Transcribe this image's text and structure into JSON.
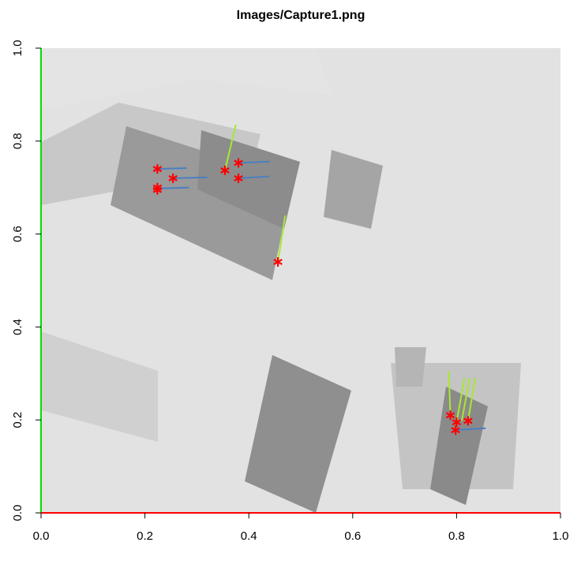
{
  "chart_data": {
    "type": "scatter",
    "title": "Images/Capture1.png",
    "xlim": [
      0,
      1
    ],
    "ylim": [
      0,
      1
    ],
    "xticks": [
      {
        "value": 0,
        "label": "0.0"
      },
      {
        "value": 0.2,
        "label": "0.2"
      },
      {
        "value": 0.4,
        "label": "0.4"
      },
      {
        "value": 0.6,
        "label": "0.6"
      },
      {
        "value": 0.8,
        "label": "0.8"
      },
      {
        "value": 1,
        "label": "1.0"
      }
    ],
    "yticks": [
      {
        "value": 0,
        "label": "0.0"
      },
      {
        "value": 0.2,
        "label": "0.2"
      },
      {
        "value": 0.4,
        "label": "0.4"
      },
      {
        "value": 0.6,
        "label": "0.6"
      },
      {
        "value": 0.8,
        "label": "0.8"
      },
      {
        "value": 1,
        "label": "1.0"
      }
    ],
    "points": {
      "color": "#ff0000",
      "x": [
        0.224,
        0.224,
        0.224,
        0.254,
        0.354,
        0.38,
        0.38,
        0.456,
        0.788,
        0.798,
        0.8,
        0.822
      ],
      "y": [
        0.74,
        0.695,
        0.7,
        0.72,
        0.737,
        0.753,
        0.72,
        0.54,
        0.21,
        0.178,
        0.195,
        0.198
      ]
    },
    "segments": [
      {
        "color": "#4a7fc1",
        "x0": [
          0.224,
          0.224,
          0.254,
          0.38,
          0.38,
          0.798
        ],
        "y0": [
          0.74,
          0.698,
          0.72,
          0.753,
          0.72,
          0.178
        ],
        "x1": [
          0.28,
          0.285,
          0.32,
          0.44,
          0.44,
          0.856
        ],
        "y1": [
          0.742,
          0.7,
          0.722,
          0.756,
          0.724,
          0.182
        ]
      },
      {
        "color": "#a8e830",
        "x0": [
          0.354,
          0.456,
          0.788,
          0.8,
          0.81,
          0.822
        ],
        "y0": [
          0.737,
          0.54,
          0.21,
          0.195,
          0.198,
          0.198
        ],
        "x1": [
          0.375,
          0.47,
          0.785,
          0.815,
          0.825,
          0.836
        ],
        "y1": [
          0.835,
          0.64,
          0.305,
          0.29,
          0.29,
          0.29
        ]
      }
    ]
  }
}
